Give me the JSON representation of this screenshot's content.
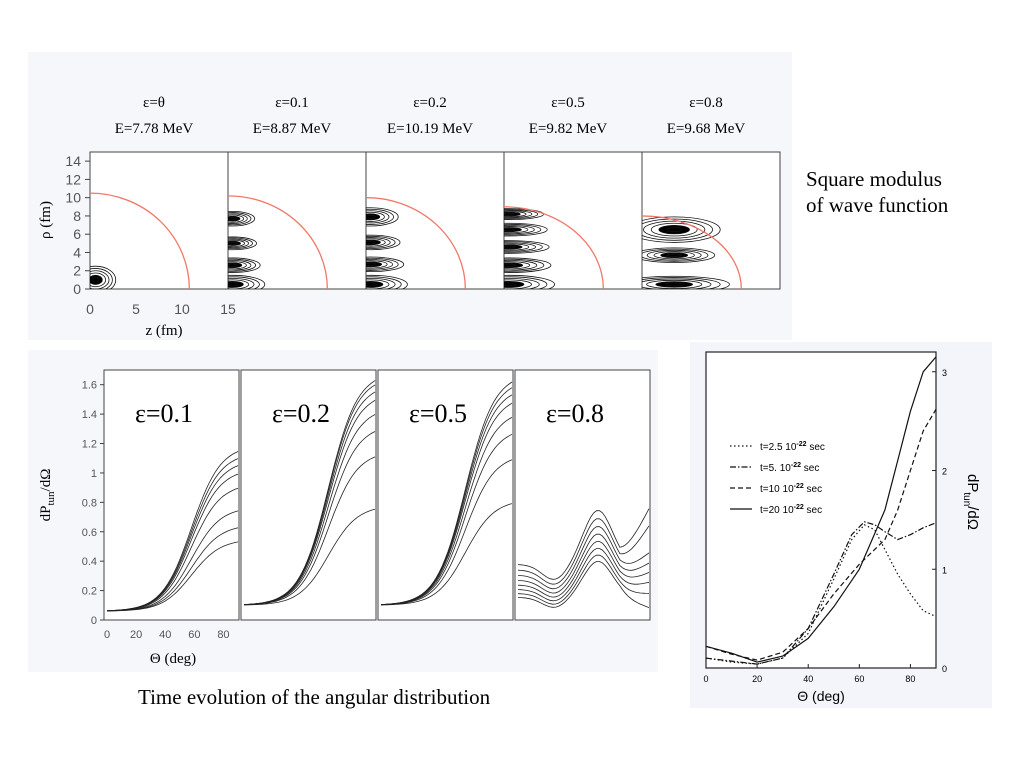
{
  "captions": {
    "top_right_line1": "Square modulus",
    "top_right_line2": "of wave function",
    "bottom": "Time evolution of the angular distribution"
  },
  "chart_data": [
    {
      "type": "heatmap",
      "panels": [
        {
          "eps": "ε=θ",
          "energy": "E=7.78 MeV",
          "lobes": [
            {
              "z": 0.6,
              "rho": 1.0,
              "w": 2.2,
              "h": 1.5
            }
          ],
          "boundary_rho0": 10.5
        },
        {
          "eps": "ε=0.1",
          "energy": "E=8.87 MeV",
          "lobes": [
            {
              "z": 0.5,
              "rho": 0.5,
              "w": 3.5,
              "h": 1.0
            },
            {
              "z": 0.5,
              "rho": 2.6,
              "w": 3.0,
              "h": 0.8
            },
            {
              "z": 0.5,
              "rho": 5.0,
              "w": 2.6,
              "h": 0.7
            },
            {
              "z": 0.5,
              "rho": 7.7,
              "w": 2.4,
              "h": 0.8
            }
          ],
          "boundary_rho0": 10.2
        },
        {
          "eps": "ε=0.2",
          "energy": "E=10.19 MeV",
          "lobes": [
            {
              "z": 0.5,
              "rho": 0.5,
              "w": 4.0,
              "h": 1.0
            },
            {
              "z": 0.5,
              "rho": 2.7,
              "w": 3.6,
              "h": 0.8
            },
            {
              "z": 0.5,
              "rho": 5.1,
              "w": 3.2,
              "h": 0.8
            },
            {
              "z": 0.5,
              "rho": 7.9,
              "w": 3.0,
              "h": 1.0
            }
          ],
          "boundary_rho0": 10.0
        },
        {
          "eps": "ε=0.5",
          "energy": "E=9.82 MeV",
          "lobes": [
            {
              "z": 0.5,
              "rho": 0.5,
              "w": 5.0,
              "h": 1.0
            },
            {
              "z": 0.5,
              "rho": 2.6,
              "w": 4.6,
              "h": 0.8
            },
            {
              "z": 0.5,
              "rho": 4.6,
              "w": 4.4,
              "h": 0.7
            },
            {
              "z": 0.5,
              "rho": 6.5,
              "w": 4.2,
              "h": 0.7
            },
            {
              "z": 0.5,
              "rho": 8.2,
              "w": 3.8,
              "h": 0.6
            }
          ],
          "boundary_rho0": 9.0
        },
        {
          "eps": "ε=0.8",
          "energy": "E=9.68 MeV",
          "lobes": [
            {
              "z": 3.5,
              "rho": 0.5,
              "w": 6.0,
              "h": 0.9
            },
            {
              "z": 3.5,
              "rho": 3.7,
              "w": 4.4,
              "h": 0.8
            },
            {
              "z": 3.5,
              "rho": 6.5,
              "w": 5.0,
              "h": 1.4
            }
          ],
          "boundary_rho0": 8.0
        }
      ],
      "xlabel": "z (fm)",
      "ylabel": "ρ (fm)",
      "xticks": [
        "0",
        "5",
        "10",
        "15"
      ],
      "yticks": [
        "0",
        "2",
        "4",
        "6",
        "8",
        "10",
        "12",
        "14"
      ],
      "xlim": [
        0,
        15
      ],
      "ylim": [
        0,
        15
      ]
    },
    {
      "type": "line",
      "panels": [
        "ε=0.1",
        "ε=0.2",
        "ε=0.5",
        "ε=0.8"
      ],
      "xlabel": "Θ (deg)",
      "ylabel": "dP",
      "ylabel_sub": "tun",
      "ylabel_tail": "/dΩ",
      "xticks": [
        "0",
        "20",
        "40",
        "60",
        "80"
      ],
      "yticks": [
        "0",
        "0.2",
        "0.4",
        "0.6",
        "0.8",
        "1",
        "1.2",
        "1.4",
        "1.6"
      ],
      "xlim": [
        0,
        90
      ],
      "ylim": [
        0,
        1.7
      ],
      "families": [
        {
          "base": 0.06,
          "amp": [
            0.77,
            0.93,
            1.03,
            1.09,
            1.14,
            1.19,
            0.55,
            0.65
          ]
        },
        {
          "base": 0.1,
          "amp": [
            0.78,
            1.15,
            1.33,
            1.45,
            1.55,
            1.61,
            1.66,
            1.69
          ]
        },
        {
          "base": 0.1,
          "amp": [
            0.82,
            1.13,
            1.31,
            1.43,
            1.53,
            1.59,
            1.64,
            1.68
          ]
        },
        {
          "base": 0.3,
          "amp": [
            0.5,
            0.6,
            0.66,
            0.7,
            0.73,
            0.76,
            0.9,
            0.96
          ]
        }
      ]
    },
    {
      "type": "line",
      "xlabel": "Θ (deg)",
      "ylabel": "dP",
      "ylabel_sub": "tun",
      "ylabel_tail": "/dΩ",
      "xticks": [
        "0",
        "20",
        "40",
        "60",
        "80"
      ],
      "yticks": [
        "0",
        "1",
        "2",
        "3"
      ],
      "xlim": [
        0,
        90
      ],
      "ylim": [
        0,
        3.2
      ],
      "series": [
        {
          "name": "t=2.5 10",
          "exp": "-22",
          "unit": " sec",
          "dash": "1.5,2.5",
          "x": [
            0,
            10,
            20,
            30,
            40,
            50,
            57,
            62,
            66,
            70,
            75,
            80,
            85,
            90
          ],
          "y": [
            0.1,
            0.06,
            0.04,
            0.1,
            0.35,
            0.9,
            1.3,
            1.45,
            1.4,
            1.2,
            0.95,
            0.75,
            0.58,
            0.52
          ]
        },
        {
          "name": "t=5. 10",
          "exp": "-22",
          "unit": " sec",
          "dash": "6,2,1.5,2",
          "x": [
            0,
            10,
            20,
            30,
            40,
            50,
            57,
            62,
            66,
            70,
            75,
            80,
            85,
            90
          ],
          "y": [
            0.1,
            0.07,
            0.04,
            0.1,
            0.4,
            0.95,
            1.35,
            1.48,
            1.45,
            1.38,
            1.3,
            1.35,
            1.42,
            1.47
          ]
        },
        {
          "name": "t=10 10",
          "exp": "-22",
          "unit": " sec",
          "dash": "5,3",
          "x": [
            0,
            10,
            20,
            30,
            40,
            50,
            60,
            70,
            75,
            80,
            85,
            90
          ],
          "y": [
            0.22,
            0.14,
            0.08,
            0.16,
            0.4,
            0.75,
            1.05,
            1.3,
            1.6,
            2.0,
            2.4,
            2.62
          ]
        },
        {
          "name": "t=20 10",
          "exp": "-22",
          "unit": " sec",
          "dash": "",
          "x": [
            0,
            10,
            20,
            30,
            40,
            50,
            60,
            70,
            75,
            80,
            85,
            90
          ],
          "y": [
            0.22,
            0.15,
            0.06,
            0.12,
            0.3,
            0.62,
            1.0,
            1.6,
            2.1,
            2.6,
            3.0,
            3.15
          ]
        }
      ]
    }
  ]
}
